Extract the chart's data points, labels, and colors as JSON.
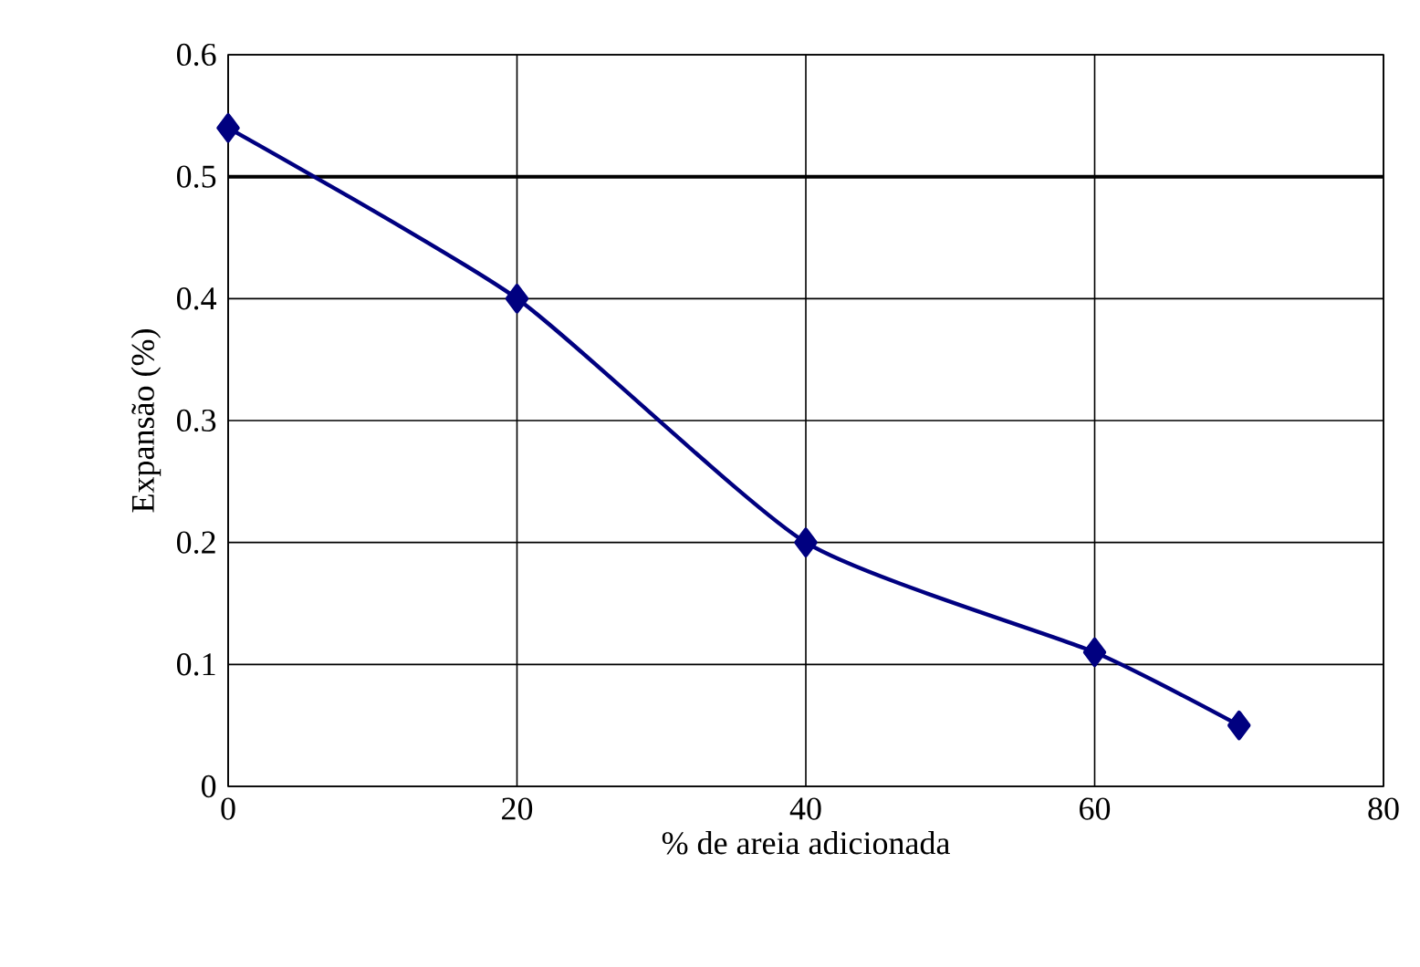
{
  "chart_data": {
    "type": "line",
    "xlabel": "% de areia adicionada",
    "ylabel": "Expansão (%)",
    "x": [
      0,
      20,
      40,
      60,
      70
    ],
    "series": [
      {
        "color": "#000080",
        "values": [
          0.54,
          0.4,
          0.2,
          0.11,
          0.05
        ]
      }
    ],
    "xlim": [
      0,
      80
    ],
    "xticks": [
      0,
      20,
      40,
      60,
      80
    ],
    "ylim": [
      0,
      0.6
    ],
    "yticks": [
      0,
      0.1,
      0.2,
      0.3,
      0.4,
      0.5,
      0.6
    ],
    "grid": true,
    "marker": "diamond",
    "line_style": "solid",
    "ref_lines": [
      {
        "axis": "y",
        "value": 0.5,
        "color": "#000000"
      }
    ]
  }
}
